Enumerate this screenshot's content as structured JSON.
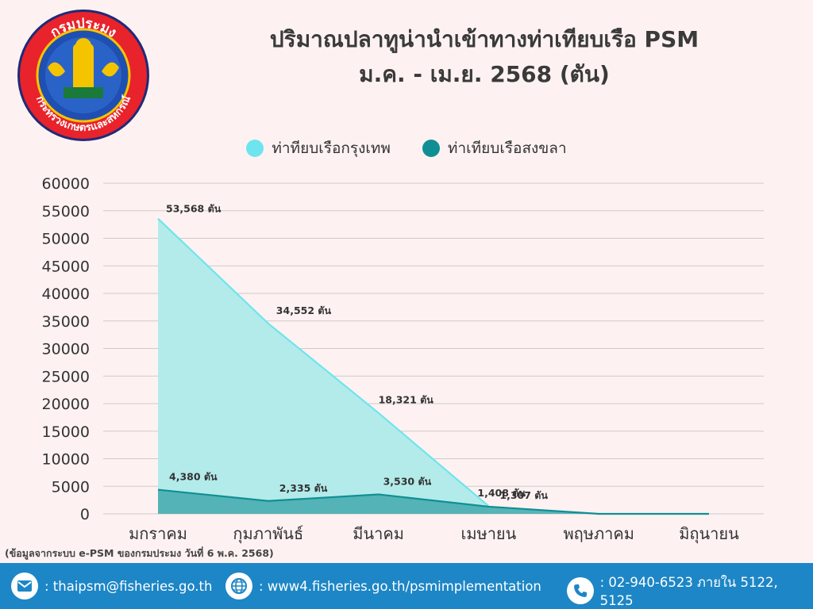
{
  "logo": {
    "top_text": "กรมประมง",
    "bottom_text": "กระทรวงเกษตรและสหกรณ์"
  },
  "header": {
    "title_line1": "ปริมาณปลาทูน่านำเข้าทางท่าเทียบเรือ PSM",
    "title_line2": "ม.ค. - เม.ย. 2568 (ตัน)"
  },
  "chart_data": {
    "type": "area",
    "categories": [
      "มกราคม",
      "กุมภาพันธ์",
      "มีนาคม",
      "เมษายน",
      "พฤษภาคม",
      "มิถุนายน"
    ],
    "series": [
      {
        "name": "ท่าทียบเรือกรุงเทพ",
        "values": [
          53568,
          34552,
          18321,
          1408,
          0,
          0
        ],
        "labels": [
          "53,568 ตัน",
          "34,552 ตัน",
          "18,321 ตัน",
          "1,408 ตัน",
          null,
          null
        ],
        "color": "#6ee5ee",
        "fill": "#b3ebea"
      },
      {
        "name": "ท่าเทียบเรือสงขลา",
        "values": [
          4380,
          2335,
          3530,
          1307,
          0,
          0
        ],
        "labels": [
          "4,380 ตัน",
          "2,335 ตัน",
          "3,530 ตัน",
          "1,307 ตัน",
          null,
          null
        ],
        "color": "#0f8f94",
        "fill": "#4fb0b3"
      }
    ],
    "yticks": [
      "0",
      "5000",
      "10000",
      "15000",
      "20000",
      "25000",
      "30000",
      "35000",
      "40000",
      "45000",
      "50000",
      "55000",
      "60000"
    ],
    "ylim": [
      0,
      60000
    ],
    "grid": true,
    "legend": "top-center"
  },
  "source_note": "(ข้อมูลจากระบบ e-PSM ของกรมประมง วันที่ 6 พ.ค. 2568)",
  "footer": {
    "email": ": thaipsm@fisheries.go.th",
    "website": ": www4.fisheries.go.th/psmimplementation",
    "phone": ": 02-940-6523 ภายใน 5122, 5125",
    "bg_color": "#1d86c6"
  }
}
